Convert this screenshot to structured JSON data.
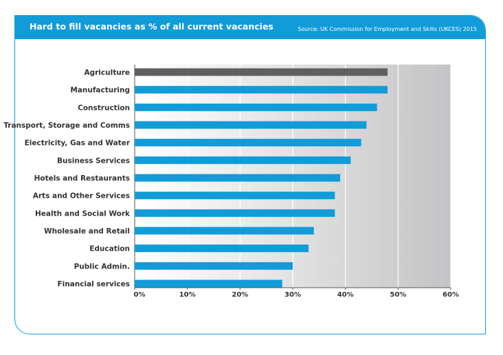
{
  "header": {
    "title": "Hard to fill vacancies as % of all current vacancies",
    "source": "Source: UK Commission for Employment and Skills (UKCES) 2015"
  },
  "colors": {
    "bar": "#129bd9",
    "highlight": "#5f5f62",
    "frame": "#1a9ad6"
  },
  "chart_data": {
    "type": "bar",
    "orientation": "horizontal",
    "title": "Hard to fill vacancies as % of all current vacancies",
    "xlabel": "",
    "ylabel": "",
    "xlim": [
      0,
      60
    ],
    "grid": true,
    "categories": [
      "Agriculture",
      "Manufacturing",
      "Construction",
      "Transport, Storage and Comms",
      "Electricity, Gas and Water",
      "Business Services",
      "Hotels and Restaurants",
      "Arts and Other Services",
      "Health and Social Work",
      "Wholesale and Retail",
      "Education",
      "Public Admin.",
      "Financial services"
    ],
    "values": [
      48,
      48,
      46,
      44,
      43,
      41,
      39,
      38,
      38,
      34,
      33,
      30,
      28
    ],
    "highlight": "Agriculture",
    "ticks": [
      "0%",
      "10%",
      "20%",
      "30%",
      "40%",
      "50%",
      "60%"
    ]
  }
}
